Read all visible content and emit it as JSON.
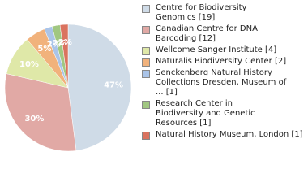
{
  "chart_data": {
    "type": "pie",
    "categories": [
      "Centre for Biodiversity\nGenomics [19]",
      "Canadian Centre for DNA\nBarcoding [12]",
      "Wellcome Sanger Institute [4]",
      "Naturalis Biodiversity Center [2]",
      "Senckenberg Natural History\nCollections Dresden, Museum of\n... [1]",
      "Research Center in\nBiodiversity and Genetic\nResources [1]",
      "Natural History Museum, London [1]"
    ],
    "values": [
      47,
      30,
      10,
      5,
      2,
      2,
      2
    ],
    "value_labels": [
      "47%",
      "30%",
      "10%",
      "5%",
      "2%",
      "2%",
      "2%"
    ],
    "colors": [
      "#cfdbe7",
      "#e1a9a5",
      "#dfe8a8",
      "#f1b27c",
      "#aac4e8",
      "#a1c781",
      "#da735f"
    ]
  }
}
